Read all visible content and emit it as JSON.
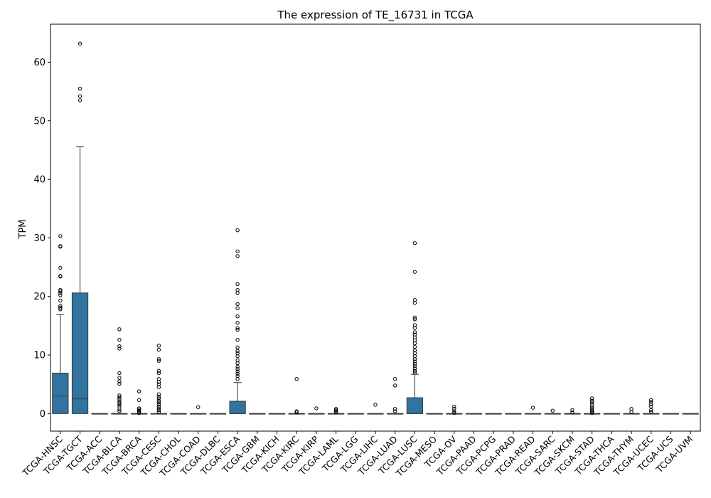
{
  "chart_data": {
    "type": "box",
    "title": "The expression of TE_16731 in TCGA",
    "xlabel": "",
    "ylabel": "TPM",
    "ylim": [
      -3,
      66.5
    ],
    "yticks": [
      0,
      10,
      20,
      30,
      40,
      50,
      60
    ],
    "grid": false,
    "legend": "none",
    "box_color": "#3274a1",
    "categories": [
      "TCGA-HNSC",
      "TCGA-TGCT",
      "TCGA-ACC",
      "TCGA-BLCA",
      "TCGA-BRCA",
      "TCGA-CESC",
      "TCGA-CHOL",
      "TCGA-COAD",
      "TCGA-DLBC",
      "TCGA-ESCA",
      "TCGA-GBM",
      "TCGA-KICH",
      "TCGA-KIRC",
      "TCGA-KIRP",
      "TCGA-LAML",
      "TCGA-LGG",
      "TCGA-LIHC",
      "TCGA-LUAD",
      "TCGA-LUSC",
      "TCGA-MESO",
      "TCGA-OV",
      "TCGA-PAAD",
      "TCGA-PCPG",
      "TCGA-PRAD",
      "TCGA-READ",
      "TCGA-SARC",
      "TCGA-SKCM",
      "TCGA-STAD",
      "TCGA-THCA",
      "TCGA-THYM",
      "TCGA-UCEC",
      "TCGA-UCS",
      "TCGA-UVM"
    ],
    "boxes": [
      {
        "q1": 0,
        "median": 3.0,
        "q3": 6.9,
        "whislo": 0,
        "whishi": 16.9,
        "fliers": [
          17.8,
          18.1,
          18.4,
          19.3,
          20.2,
          20.6,
          20.9,
          21.1,
          23.4,
          23.5,
          24.9,
          28.5,
          28.6,
          30.3
        ]
      },
      {
        "q1": 0,
        "median": 2.5,
        "q3": 20.6,
        "whislo": 0,
        "whishi": 45.6,
        "fliers": [
          53.5,
          54.2,
          55.5,
          63.2
        ]
      },
      {
        "q1": 0,
        "median": 0,
        "q3": 0,
        "whislo": 0,
        "whishi": 0,
        "fliers": []
      },
      {
        "q1": 0,
        "median": 0,
        "q3": 0,
        "whislo": 0,
        "whishi": 0,
        "fliers": [
          0.4,
          0.7,
          1.2,
          1.5,
          1.8,
          2.1,
          2.5,
          2.8,
          3.1,
          5.1,
          5.5,
          6.1,
          6.9,
          11.1,
          11.5,
          12.6,
          14.4
        ]
      },
      {
        "q1": 0,
        "median": 0,
        "q3": 0,
        "whislo": 0,
        "whishi": 0,
        "fliers": [
          0.1,
          0.3,
          0.5,
          0.7,
          0.9,
          2.3,
          3.8
        ]
      },
      {
        "q1": 0,
        "median": 0,
        "q3": 0,
        "whislo": 0,
        "whishi": 0,
        "fliers": [
          0.3,
          0.6,
          0.9,
          1.2,
          1.6,
          1.9,
          2.2,
          2.6,
          2.9,
          3.3,
          4.5,
          5.0,
          5.4,
          5.9,
          6.9,
          7.3,
          9.0,
          9.3,
          10.9,
          11.6
        ]
      },
      {
        "q1": 0,
        "median": 0,
        "q3": 0,
        "whislo": 0,
        "whishi": 0,
        "fliers": []
      },
      {
        "q1": 0,
        "median": 0,
        "q3": 0,
        "whislo": 0,
        "whishi": 0,
        "fliers": [
          1.1
        ]
      },
      {
        "q1": 0,
        "median": 0,
        "q3": 0,
        "whislo": 0,
        "whishi": 0,
        "fliers": []
      },
      {
        "q1": 0,
        "median": 0,
        "q3": 2.1,
        "whislo": 0,
        "whishi": 5.3,
        "fliers": [
          5.9,
          6.4,
          6.8,
          7.2,
          7.6,
          8.0,
          8.6,
          9.1,
          9.8,
          10.3,
          10.7,
          11.3,
          12.6,
          14.3,
          14.6,
          15.5,
          16.6,
          18.0,
          18.7,
          20.6,
          21.1,
          22.1,
          26.9,
          27.7,
          31.3
        ]
      },
      {
        "q1": 0,
        "median": 0,
        "q3": 0,
        "whislo": 0,
        "whishi": 0,
        "fliers": []
      },
      {
        "q1": 0,
        "median": 0,
        "q3": 0,
        "whislo": 0,
        "whishi": 0,
        "fliers": []
      },
      {
        "q1": 0,
        "median": 0,
        "q3": 0,
        "whislo": 0,
        "whishi": 0,
        "fliers": [
          0.2,
          0.4,
          5.9
        ]
      },
      {
        "q1": 0,
        "median": 0,
        "q3": 0,
        "whislo": 0,
        "whishi": 0,
        "fliers": [
          0.9
        ]
      },
      {
        "q1": 0,
        "median": 0,
        "q3": 0,
        "whislo": 0,
        "whishi": 0,
        "fliers": [
          0.2,
          0.4,
          0.6,
          0.8
        ]
      },
      {
        "q1": 0,
        "median": 0,
        "q3": 0,
        "whislo": 0,
        "whishi": 0,
        "fliers": []
      },
      {
        "q1": 0,
        "median": 0,
        "q3": 0,
        "whislo": 0,
        "whishi": 0,
        "fliers": [
          1.5
        ]
      },
      {
        "q1": 0,
        "median": 0,
        "q3": 0,
        "whislo": 0,
        "whishi": 0,
        "fliers": [
          0.4,
          0.8,
          4.8,
          5.9
        ]
      },
      {
        "q1": 0,
        "median": 0,
        "q3": 2.7,
        "whislo": 0,
        "whishi": 6.7,
        "fliers": [
          7.0,
          7.3,
          7.7,
          8.1,
          8.5,
          8.9,
          9.3,
          9.8,
          10.3,
          10.8,
          11.4,
          12.0,
          12.5,
          13.0,
          13.5,
          13.9,
          14.6,
          15.1,
          16.1,
          16.4,
          18.9,
          19.4,
          24.2,
          29.1
        ]
      },
      {
        "q1": 0,
        "median": 0,
        "q3": 0,
        "whislo": 0,
        "whishi": 0,
        "fliers": []
      },
      {
        "q1": 0,
        "median": 0,
        "q3": 0,
        "whislo": 0,
        "whishi": 0,
        "fliers": [
          0.1,
          0.4,
          0.8,
          1.2
        ]
      },
      {
        "q1": 0,
        "median": 0,
        "q3": 0,
        "whislo": 0,
        "whishi": 0,
        "fliers": []
      },
      {
        "q1": 0,
        "median": 0,
        "q3": 0,
        "whislo": 0,
        "whishi": 0,
        "fliers": []
      },
      {
        "q1": 0,
        "median": 0,
        "q3": 0,
        "whislo": 0,
        "whishi": 0,
        "fliers": []
      },
      {
        "q1": 0,
        "median": 0,
        "q3": 0,
        "whislo": 0,
        "whishi": 0,
        "fliers": [
          1.0
        ]
      },
      {
        "q1": 0,
        "median": 0,
        "q3": 0,
        "whislo": 0,
        "whishi": 0,
        "fliers": [
          0.5
        ]
      },
      {
        "q1": 0,
        "median": 0,
        "q3": 0,
        "whislo": 0,
        "whishi": 0,
        "fliers": [
          0.2,
          0.6
        ]
      },
      {
        "q1": 0,
        "median": 0,
        "q3": 0,
        "whislo": 0,
        "whishi": 0,
        "fliers": [
          0.1,
          0.3,
          0.5,
          0.8,
          1.1,
          1.5,
          1.9,
          2.2,
          2.6
        ]
      },
      {
        "q1": 0,
        "median": 0,
        "q3": 0,
        "whislo": 0,
        "whishi": 0,
        "fliers": []
      },
      {
        "q1": 0,
        "median": 0,
        "q3": 0,
        "whislo": 0,
        "whishi": 0,
        "fliers": [
          0.3,
          0.8
        ]
      },
      {
        "q1": 0,
        "median": 0,
        "q3": 0,
        "whislo": 0,
        "whishi": 0,
        "fliers": [
          0.3,
          0.6,
          1.2,
          1.6,
          2.0,
          2.3
        ]
      },
      {
        "q1": 0,
        "median": 0,
        "q3": 0,
        "whislo": 0,
        "whishi": 0,
        "fliers": []
      },
      {
        "q1": 0,
        "median": 0,
        "q3": 0,
        "whislo": 0,
        "whishi": 0,
        "fliers": []
      }
    ]
  }
}
